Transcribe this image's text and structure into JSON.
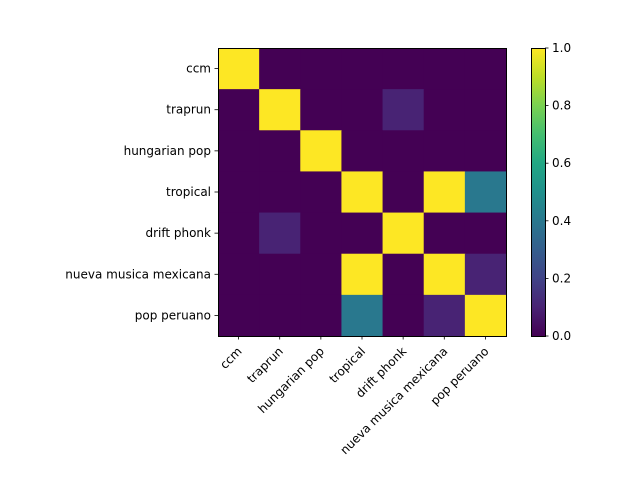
{
  "chart_data": {
    "type": "heatmap",
    "title": "",
    "xlabel": "",
    "ylabel": "",
    "categories": [
      "ccm",
      "traprun",
      "hungarian pop",
      "tropical",
      "drift phonk",
      "nueva musica mexicana",
      "pop peruano"
    ],
    "matrix": [
      [
        1.0,
        0.0,
        0.0,
        0.0,
        0.0,
        0.0,
        0.0
      ],
      [
        0.0,
        1.0,
        0.0,
        0.0,
        0.1,
        0.0,
        0.0
      ],
      [
        0.0,
        0.0,
        1.0,
        0.0,
        0.0,
        0.0,
        0.0
      ],
      [
        0.0,
        0.0,
        0.0,
        1.0,
        0.0,
        1.0,
        0.4
      ],
      [
        0.0,
        0.1,
        0.0,
        0.0,
        1.0,
        0.0,
        0.0
      ],
      [
        0.0,
        0.0,
        0.0,
        1.0,
        0.0,
        1.0,
        0.1
      ],
      [
        0.0,
        0.0,
        0.0,
        0.4,
        0.0,
        0.1,
        1.0
      ]
    ],
    "colorscale": "viridis",
    "colorbar_range": [
      0.0,
      1.0
    ],
    "colorbar_ticks": [
      "0.0",
      "0.2",
      "0.4",
      "0.6",
      "0.8",
      "1.0"
    ],
    "grid": false,
    "legend": "colorbar-right"
  }
}
